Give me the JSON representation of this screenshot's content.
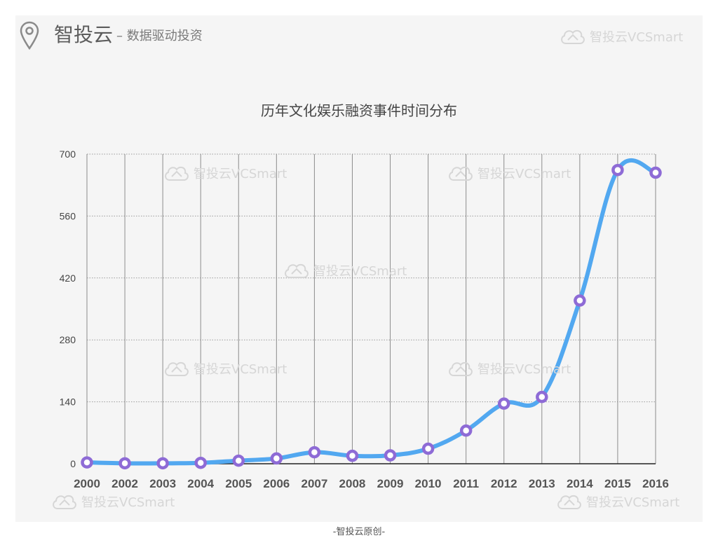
{
  "header": {
    "brand": "智投云",
    "tagline": "– 数据驱动投资",
    "watermark": "智投云VCSmart"
  },
  "footer": {
    "text": "-智投云原创-"
  },
  "colors": {
    "line": "#52a8f0",
    "marker": "#8e6bd6",
    "background": "#f5f5f5"
  },
  "chart_data": {
    "type": "line",
    "title": "历年文化娱乐融资事件时间分布",
    "xlabel": "",
    "ylabel": "",
    "categories": [
      "2000",
      "2002",
      "2003",
      "2004",
      "2005",
      "2006",
      "2007",
      "2008",
      "2009",
      "2010",
      "2011",
      "2012",
      "2013",
      "2014",
      "2015",
      "2016"
    ],
    "series": [
      {
        "values": [
          3,
          1,
          1,
          2,
          7,
          12,
          26,
          18,
          19,
          34,
          75,
          136,
          151,
          369,
          664,
          658
        ]
      }
    ],
    "yticks": [
      0,
      140,
      280,
      420,
      560,
      700
    ],
    "ylim": [
      0,
      700
    ],
    "grid": true
  }
}
